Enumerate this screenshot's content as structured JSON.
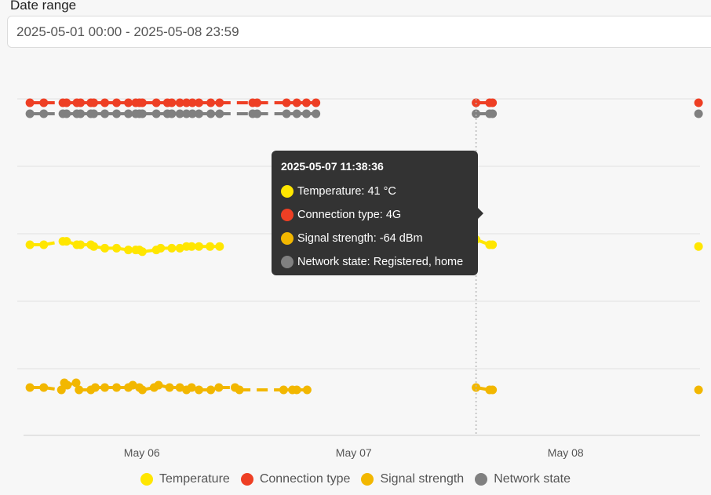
{
  "filter": {
    "label": "Date range",
    "value": "2025-05-01 00:00 - 2025-05-08 23:59"
  },
  "colors": {
    "temperature": "#ffe600",
    "connection_type": "#ee3f24",
    "signal_strength": "#f2b700",
    "network_state": "#808080",
    "tooltip_bg": "#333333",
    "grid": "#e2e2e2"
  },
  "chart_data": {
    "type": "scatter",
    "xlabel": "",
    "ylabel": "",
    "x_ticks": [
      "May 06",
      "May 07",
      "May 08"
    ],
    "x_range": [
      "2025-05-05 09:00",
      "2025-05-08 13:00"
    ],
    "grid": true,
    "legend_position": "bottom",
    "series": [
      {
        "name": "Temperature",
        "key": "temperature",
        "lane": 3,
        "points": [
          {
            "x": "2025-05-05 09:06",
            "y": 38
          },
          {
            "x": "2025-05-05 10:40",
            "y": 38
          },
          {
            "x": "2025-05-05 12:50",
            "y": 40
          },
          {
            "x": "2025-05-05 13:15",
            "y": 40
          },
          {
            "x": "2025-05-05 14:25",
            "y": 38
          },
          {
            "x": "2025-05-05 14:50",
            "y": 38
          },
          {
            "x": "2025-05-05 16:00",
            "y": 38
          },
          {
            "x": "2025-05-05 16:20",
            "y": 37
          },
          {
            "x": "2025-05-05 17:35",
            "y": 36
          },
          {
            "x": "2025-05-05 18:55",
            "y": 36
          },
          {
            "x": "2025-05-05 20:15",
            "y": 35
          },
          {
            "x": "2025-05-05 21:05",
            "y": 35
          },
          {
            "x": "2025-05-05 21:30",
            "y": 35
          },
          {
            "x": "2025-05-05 21:50",
            "y": 34
          },
          {
            "x": "2025-05-05 23:25",
            "y": 35
          },
          {
            "x": "2025-05-05 23:55",
            "y": 36
          },
          {
            "x": "2025-05-06 01:10",
            "y": 36
          },
          {
            "x": "2025-05-06 02:05",
            "y": 36
          },
          {
            "x": "2025-05-06 02:50",
            "y": 37
          },
          {
            "x": "2025-05-06 03:25",
            "y": 37
          },
          {
            "x": "2025-05-06 04:15",
            "y": 37
          },
          {
            "x": "2025-05-06 05:30",
            "y": 37
          },
          {
            "x": "2025-05-06 06:35",
            "y": 37
          },
          {
            "x": "2025-05-07 11:38",
            "y": 41
          },
          {
            "x": "2025-05-07 13:10",
            "y": 38
          },
          {
            "x": "2025-05-07 13:30",
            "y": 38
          },
          {
            "x": "2025-05-08 12:50",
            "y": 37
          }
        ]
      },
      {
        "name": "Connection type",
        "key": "connection_type",
        "lane": 0,
        "category": "4G",
        "points": [
          {
            "x": "2025-05-05 09:06"
          },
          {
            "x": "2025-05-05 10:40"
          },
          {
            "x": "2025-05-05 12:50"
          },
          {
            "x": "2025-05-05 13:15"
          },
          {
            "x": "2025-05-05 14:25"
          },
          {
            "x": "2025-05-05 14:50"
          },
          {
            "x": "2025-05-05 16:00"
          },
          {
            "x": "2025-05-05 16:20"
          },
          {
            "x": "2025-05-05 17:35"
          },
          {
            "x": "2025-05-05 18:55"
          },
          {
            "x": "2025-05-05 20:15"
          },
          {
            "x": "2025-05-05 21:05"
          },
          {
            "x": "2025-05-05 21:30"
          },
          {
            "x": "2025-05-05 21:50"
          },
          {
            "x": "2025-05-05 23:25"
          },
          {
            "x": "2025-05-06 00:40"
          },
          {
            "x": "2025-05-06 01:10"
          },
          {
            "x": "2025-05-06 02:05"
          },
          {
            "x": "2025-05-06 02:50"
          },
          {
            "x": "2025-05-06 03:30"
          },
          {
            "x": "2025-05-06 04:15"
          },
          {
            "x": "2025-05-06 05:35"
          },
          {
            "x": "2025-05-06 06:35"
          },
          {
            "x": "2025-05-06 10:20"
          },
          {
            "x": "2025-05-06 10:50"
          },
          {
            "x": "2025-05-06 14:10"
          },
          {
            "x": "2025-05-06 15:20"
          },
          {
            "x": "2025-05-06 16:25"
          },
          {
            "x": "2025-05-06 17:30"
          },
          {
            "x": "2025-05-07 11:38"
          },
          {
            "x": "2025-05-07 13:10"
          },
          {
            "x": "2025-05-07 13:30"
          },
          {
            "x": "2025-05-08 12:50"
          }
        ]
      },
      {
        "name": "Signal strength",
        "key": "signal_strength",
        "lane": 5,
        "points": [
          {
            "x": "2025-05-05 09:06",
            "y": -64
          },
          {
            "x": "2025-05-05 10:40",
            "y": -64
          },
          {
            "x": "2025-05-05 12:40",
            "y": -65
          },
          {
            "x": "2025-05-05 13:00",
            "y": -62
          },
          {
            "x": "2025-05-05 13:20",
            "y": -63
          },
          {
            "x": "2025-05-05 14:20",
            "y": -62
          },
          {
            "x": "2025-05-05 14:40",
            "y": -65
          },
          {
            "x": "2025-05-05 16:00",
            "y": -65
          },
          {
            "x": "2025-05-05 16:30",
            "y": -64
          },
          {
            "x": "2025-05-05 17:35",
            "y": -64
          },
          {
            "x": "2025-05-05 18:55",
            "y": -64
          },
          {
            "x": "2025-05-05 20:15",
            "y": -64
          },
          {
            "x": "2025-05-05 20:45",
            "y": -63
          },
          {
            "x": "2025-05-05 21:30",
            "y": -64
          },
          {
            "x": "2025-05-05 21:50",
            "y": -65
          },
          {
            "x": "2025-05-05 23:10",
            "y": -64
          },
          {
            "x": "2025-05-05 23:40",
            "y": -63
          },
          {
            "x": "2025-05-06 00:55",
            "y": -64
          },
          {
            "x": "2025-05-06 02:05",
            "y": -64
          },
          {
            "x": "2025-05-06 02:50",
            "y": -65
          },
          {
            "x": "2025-05-06 03:25",
            "y": -64
          },
          {
            "x": "2025-05-06 04:15",
            "y": -65
          },
          {
            "x": "2025-05-06 05:35",
            "y": -65
          },
          {
            "x": "2025-05-06 06:30",
            "y": -64
          },
          {
            "x": "2025-05-06 08:20",
            "y": -64
          },
          {
            "x": "2025-05-06 08:50",
            "y": -65
          },
          {
            "x": "2025-05-06 13:50",
            "y": -65
          },
          {
            "x": "2025-05-06 14:50",
            "y": -65
          },
          {
            "x": "2025-05-06 15:20",
            "y": -65
          },
          {
            "x": "2025-05-06 16:30",
            "y": -65
          },
          {
            "x": "2025-05-07 11:38",
            "y": -64
          },
          {
            "x": "2025-05-07 13:10",
            "y": -65
          },
          {
            "x": "2025-05-07 13:30",
            "y": -65
          },
          {
            "x": "2025-05-08 12:50",
            "y": -65
          }
        ]
      },
      {
        "name": "Network state",
        "key": "network_state",
        "lane": 1,
        "category": "Registered, home",
        "points": [
          {
            "x": "2025-05-05 09:06"
          },
          {
            "x": "2025-05-05 10:40"
          },
          {
            "x": "2025-05-05 12:50"
          },
          {
            "x": "2025-05-05 13:15"
          },
          {
            "x": "2025-05-05 14:25"
          },
          {
            "x": "2025-05-05 14:50"
          },
          {
            "x": "2025-05-05 16:00"
          },
          {
            "x": "2025-05-05 16:20"
          },
          {
            "x": "2025-05-05 17:35"
          },
          {
            "x": "2025-05-05 18:55"
          },
          {
            "x": "2025-05-05 20:15"
          },
          {
            "x": "2025-05-05 21:05"
          },
          {
            "x": "2025-05-05 21:30"
          },
          {
            "x": "2025-05-05 21:50"
          },
          {
            "x": "2025-05-05 23:25"
          },
          {
            "x": "2025-05-06 00:40"
          },
          {
            "x": "2025-05-06 01:10"
          },
          {
            "x": "2025-05-06 02:05"
          },
          {
            "x": "2025-05-06 02:50"
          },
          {
            "x": "2025-05-06 03:30"
          },
          {
            "x": "2025-05-06 04:15"
          },
          {
            "x": "2025-05-06 05:35"
          },
          {
            "x": "2025-05-06 06:35"
          },
          {
            "x": "2025-05-06 10:20"
          },
          {
            "x": "2025-05-06 10:50"
          },
          {
            "x": "2025-05-06 14:10"
          },
          {
            "x": "2025-05-06 15:20"
          },
          {
            "x": "2025-05-06 16:25"
          },
          {
            "x": "2025-05-06 17:30"
          },
          {
            "x": "2025-05-07 11:38"
          },
          {
            "x": "2025-05-07 13:10"
          },
          {
            "x": "2025-05-07 13:30"
          },
          {
            "x": "2025-05-08 12:50"
          }
        ]
      }
    ]
  },
  "tooltip": {
    "title": "2025-05-07 11:38:36",
    "rows": [
      {
        "key": "temperature",
        "text": "Temperature: 41 °C"
      },
      {
        "key": "connection_type",
        "text": "Connection type: 4G"
      },
      {
        "key": "signal_strength",
        "text": "Signal strength: -64 dBm"
      },
      {
        "key": "network_state",
        "text": "Network state: Registered, home"
      }
    ]
  },
  "legend": [
    {
      "key": "temperature",
      "label": "Temperature"
    },
    {
      "key": "connection_type",
      "label": "Connection type"
    },
    {
      "key": "signal_strength",
      "label": "Signal strength"
    },
    {
      "key": "network_state",
      "label": "Network state"
    }
  ]
}
